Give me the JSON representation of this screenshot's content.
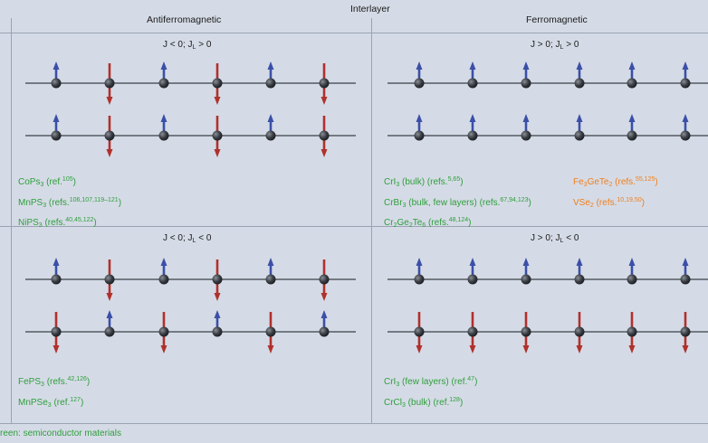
{
  "header": {
    "interlayer": "Interlayer",
    "afm": "Antiferromagnetic",
    "fm": "Ferromagnetic"
  },
  "conditions": {
    "tl": {
      "a": "J < 0; J",
      "sub": "L",
      "b": " > 0"
    },
    "tr": {
      "a": "J > 0; J",
      "sub": "L",
      "b": " > 0"
    },
    "bl": {
      "a": "J < 0; J",
      "sub": "L",
      "b": " < 0"
    },
    "br": {
      "a": "J > 0; J",
      "sub": "L",
      "b": " < 0"
    }
  },
  "materials": {
    "tl": [
      {
        "f1": "CoPs",
        "s1": "3",
        "ref": " (ref.",
        "sup": "105",
        "end": ")"
      },
      {
        "f1": "MnPS",
        "s1": "3",
        "ref": " (refs.",
        "sup": "106,107,119–121",
        "end": ")"
      },
      {
        "f1": "NiPS",
        "s1": "3",
        "ref": " (refs.",
        "sup": "40,45,122",
        "end": ")"
      }
    ],
    "tr_green": [
      {
        "f1": "CrI",
        "s1": "3",
        "ref": " (bulk) (refs.",
        "sup": "5,65",
        "end": ")"
      },
      {
        "f1": "CrBr",
        "s1": "3",
        "ref": " (bulk, few layers) (refs.",
        "sup": "67,94,123",
        "end": ")"
      }
    ],
    "tr_cgt": {
      "a": "Cr",
      "s1": "2",
      "b": "Ge",
      "s2": "2",
      "c": "Te",
      "s3": "6",
      "ref": " (refs.",
      "sup": "48,124",
      "end": ")"
    },
    "tr_fgt": {
      "a": "Fe",
      "s1": "3",
      "b": "GeTe",
      "s2": "2",
      "ref": " (refs.",
      "sup": "55,125",
      "end": ")"
    },
    "tr_vse": {
      "a": "VSe",
      "s1": "2",
      "ref": " (refs.",
      "sup": "10,19,50",
      "end": ")"
    },
    "bl": [
      {
        "f1": "FePS",
        "s1": "3",
        "ref": " (refs.",
        "sup": "42,126",
        "end": ")"
      },
      {
        "f1": "MnPSe",
        "s1": "3",
        "ref": " (ref.",
        "sup": "127",
        "end": ")"
      }
    ],
    "br": [
      {
        "f1": "CrI",
        "s1": "3",
        "ref": " (few layers) (ref.",
        "sup": "47",
        "end": ")"
      },
      {
        "f1": "CrCl",
        "s1": "3",
        "ref": " (bulk) (ref.",
        "sup": "128",
        "end": ")"
      }
    ]
  },
  "legend_note": "reen: semiconductor materials",
  "colors": {
    "up": "#3b4fa8",
    "down": "#b0312c",
    "green": "#2e9e3c",
    "orange": "#ee7f1e",
    "line": "#555a60"
  },
  "spin_panels": {
    "tl": {
      "row1": [
        "up",
        "down",
        "up",
        "down",
        "up",
        "down"
      ],
      "row2": [
        "up",
        "down",
        "up",
        "down",
        "up",
        "down"
      ]
    },
    "tr": {
      "row1": [
        "up",
        "up",
        "up",
        "up",
        "up",
        "up",
        "up"
      ],
      "row2": [
        "up",
        "up",
        "up",
        "up",
        "up",
        "up",
        "up"
      ]
    },
    "bl": {
      "row1": [
        "up",
        "down",
        "up",
        "down",
        "up",
        "down"
      ],
      "row2": [
        "down",
        "up",
        "down",
        "up",
        "down",
        "up"
      ]
    },
    "br": {
      "row1": [
        "up",
        "up",
        "up",
        "up",
        "up",
        "up",
        "up"
      ],
      "row2": [
        "down",
        "down",
        "down",
        "down",
        "down",
        "down",
        "down"
      ]
    }
  }
}
